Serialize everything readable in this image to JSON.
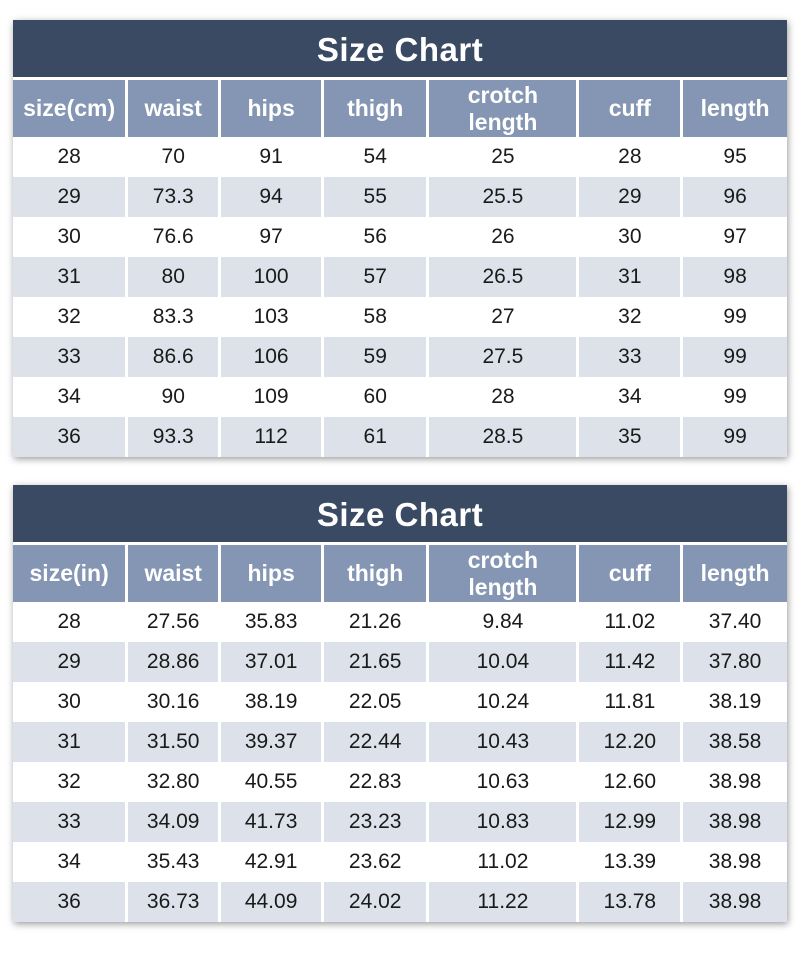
{
  "page_title": "Size Chart",
  "colors": {
    "title_bar_bg": "#3a4a63",
    "column_header_bg": "#8496b3",
    "row_alt_bg": "#dce1ea",
    "row_bg": "#ffffff",
    "header_text": "#ffffff",
    "body_text": "#1a1a1a"
  },
  "chart_data": [
    {
      "type": "table",
      "title": "Size Chart",
      "columns": [
        "size(cm)",
        "waist",
        "hips",
        "thigh",
        "crotch length",
        "cuff",
        "length"
      ],
      "rows": [
        [
          "28",
          "70",
          "91",
          "54",
          "25",
          "28",
          "95"
        ],
        [
          "29",
          "73.3",
          "94",
          "55",
          "25.5",
          "29",
          "96"
        ],
        [
          "30",
          "76.6",
          "97",
          "56",
          "26",
          "30",
          "97"
        ],
        [
          "31",
          "80",
          "100",
          "57",
          "26.5",
          "31",
          "98"
        ],
        [
          "32",
          "83.3",
          "103",
          "58",
          "27",
          "32",
          "99"
        ],
        [
          "33",
          "86.6",
          "106",
          "59",
          "27.5",
          "33",
          "99"
        ],
        [
          "34",
          "90",
          "109",
          "60",
          "28",
          "34",
          "99"
        ],
        [
          "36",
          "93.3",
          "112",
          "61",
          "28.5",
          "35",
          "99"
        ]
      ]
    },
    {
      "type": "table",
      "title": "Size Chart",
      "columns": [
        "size(in)",
        "waist",
        "hips",
        "thigh",
        "crotch length",
        "cuff",
        "length"
      ],
      "rows": [
        [
          "28",
          "27.56",
          "35.83",
          "21.26",
          "9.84",
          "11.02",
          "37.40"
        ],
        [
          "29",
          "28.86",
          "37.01",
          "21.65",
          "10.04",
          "11.42",
          "37.80"
        ],
        [
          "30",
          "30.16",
          "38.19",
          "22.05",
          "10.24",
          "11.81",
          "38.19"
        ],
        [
          "31",
          "31.50",
          "39.37",
          "22.44",
          "10.43",
          "12.20",
          "38.58"
        ],
        [
          "32",
          "32.80",
          "40.55",
          "22.83",
          "10.63",
          "12.60",
          "38.98"
        ],
        [
          "33",
          "34.09",
          "41.73",
          "23.23",
          "10.83",
          "12.99",
          "38.98"
        ],
        [
          "34",
          "35.43",
          "42.91",
          "23.62",
          "11.02",
          "13.39",
          "38.98"
        ],
        [
          "36",
          "36.73",
          "44.09",
          "24.02",
          "11.22",
          "13.78",
          "38.98"
        ]
      ]
    }
  ]
}
